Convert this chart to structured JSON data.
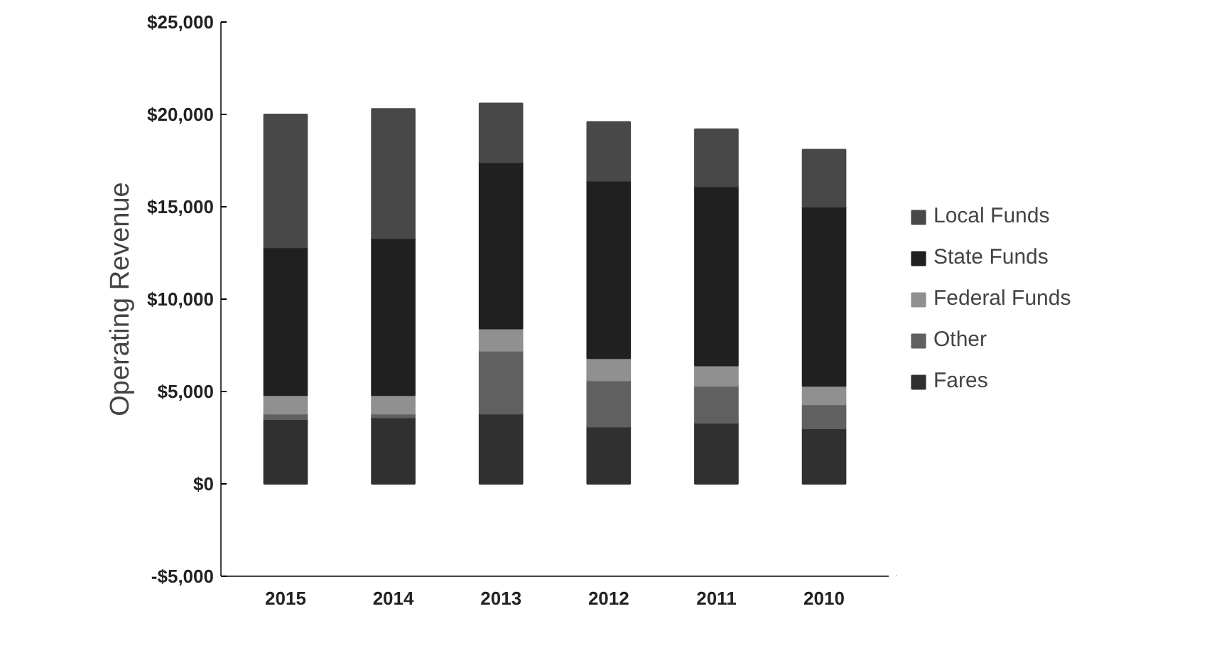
{
  "chart_data": {
    "type": "bar",
    "stacked": true,
    "ylabel": "Operating Revenue",
    "categories": [
      "2015",
      "2014",
      "2013",
      "2012",
      "2011",
      "2010"
    ],
    "series": [
      {
        "name": "Fares",
        "color": "#303030",
        "values": [
          3500,
          3600,
          3800,
          3100,
          3300,
          3000
        ]
      },
      {
        "name": "Other",
        "color": "#606060",
        "values": [
          300,
          200,
          3400,
          2500,
          2000,
          1300
        ]
      },
      {
        "name": "Federal Funds",
        "color": "#909090",
        "values": [
          1000,
          1000,
          1200,
          1200,
          1100,
          1000
        ]
      },
      {
        "name": "State Funds",
        "color": "#202020",
        "values": [
          8000,
          8500,
          9000,
          9600,
          9700,
          9700
        ]
      },
      {
        "name": "Local Funds",
        "color": "#484848",
        "values": [
          7200,
          7000,
          3200,
          3200,
          3100,
          3100
        ]
      }
    ],
    "ylim": [
      -5000,
      25000
    ],
    "yticks": [
      {
        "value": -5000,
        "label": "-$5,000"
      },
      {
        "value": 0,
        "label": "$0"
      },
      {
        "value": 5000,
        "label": "$5,000"
      },
      {
        "value": 10000,
        "label": "$10,000"
      },
      {
        "value": 15000,
        "label": "$15,000"
      },
      {
        "value": 20000,
        "label": "$20,000"
      },
      {
        "value": 25000,
        "label": "$25,000"
      }
    ],
    "grid": false,
    "legend": "right"
  }
}
